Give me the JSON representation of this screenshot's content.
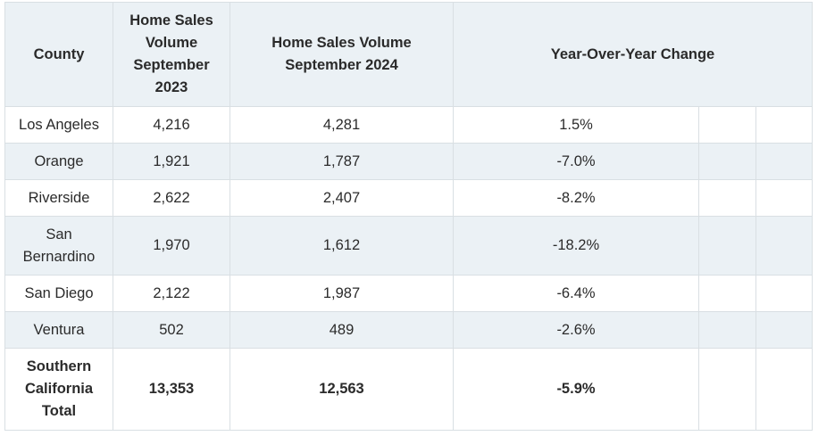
{
  "table": {
    "headers": {
      "county": "County",
      "sales_2023": "Home Sales Volume September 2023",
      "sales_2024": "Home Sales Volume September 2024",
      "yoy": "Year-Over-Year Change"
    },
    "rows": [
      {
        "county": "Los Angeles",
        "sales_2023": "4,216",
        "sales_2024": "4,281",
        "yoy": "1.5%"
      },
      {
        "county": "Orange",
        "sales_2023": "1,921",
        "sales_2024": "1,787",
        "yoy": "-7.0%"
      },
      {
        "county": "Riverside",
        "sales_2023": "2,622",
        "sales_2024": "2,407",
        "yoy": "-8.2%"
      },
      {
        "county": "San Bernardino",
        "sales_2023": "1,970",
        "sales_2024": "1,612",
        "yoy": "-18.2%"
      },
      {
        "county": "San Diego",
        "sales_2023": "2,122",
        "sales_2024": "1,987",
        "yoy": "-6.4%"
      },
      {
        "county": "Ventura",
        "sales_2023": "502",
        "sales_2024": "489",
        "yoy": "-2.6%"
      },
      {
        "county": "Southern California Total",
        "sales_2023": "13,353",
        "sales_2024": "12,563",
        "yoy": "-5.9%"
      }
    ]
  },
  "colors": {
    "header_bg": "#ebf1f5",
    "stripe_bg": "#ebf1f5",
    "row_bg": "#ffffff",
    "border": "#d9dfe3"
  }
}
